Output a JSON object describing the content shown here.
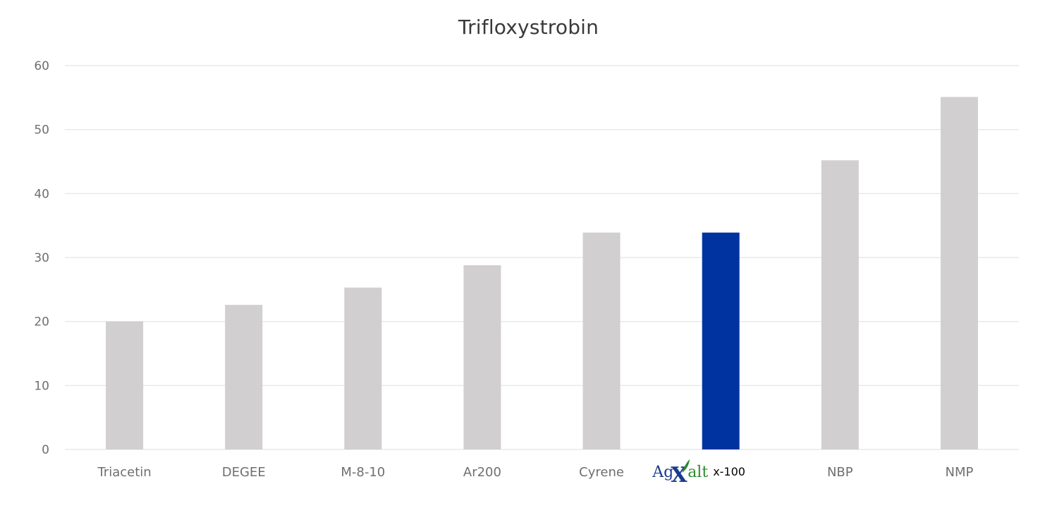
{
  "chart_data": {
    "type": "bar",
    "title": "Trifloxystrobin",
    "xlabel": "",
    "ylabel": "",
    "ylim": [
      0,
      60
    ],
    "yticks": [
      0,
      10,
      20,
      30,
      40,
      50,
      60
    ],
    "grid": true,
    "categories": [
      "Triacetin",
      "DEGEE",
      "M-8-10",
      "Ar200",
      "Cyrene",
      "AgXalt x-100",
      "NBP",
      "NMP"
    ],
    "values": [
      20,
      22.6,
      25.3,
      28.8,
      33.9,
      33.9,
      45.2,
      55.1
    ],
    "highlight_index": 5,
    "highlight_label": {
      "ag": "Ag",
      "x": "X",
      "alt": "alt",
      "suffix": "x-100"
    },
    "colors": {
      "bar": "#d1cfd0",
      "highlight": "#0033a0",
      "grid": "#e3e3e3",
      "axis_text": "#6f6f6f",
      "title": "#3a3a3a"
    }
  }
}
